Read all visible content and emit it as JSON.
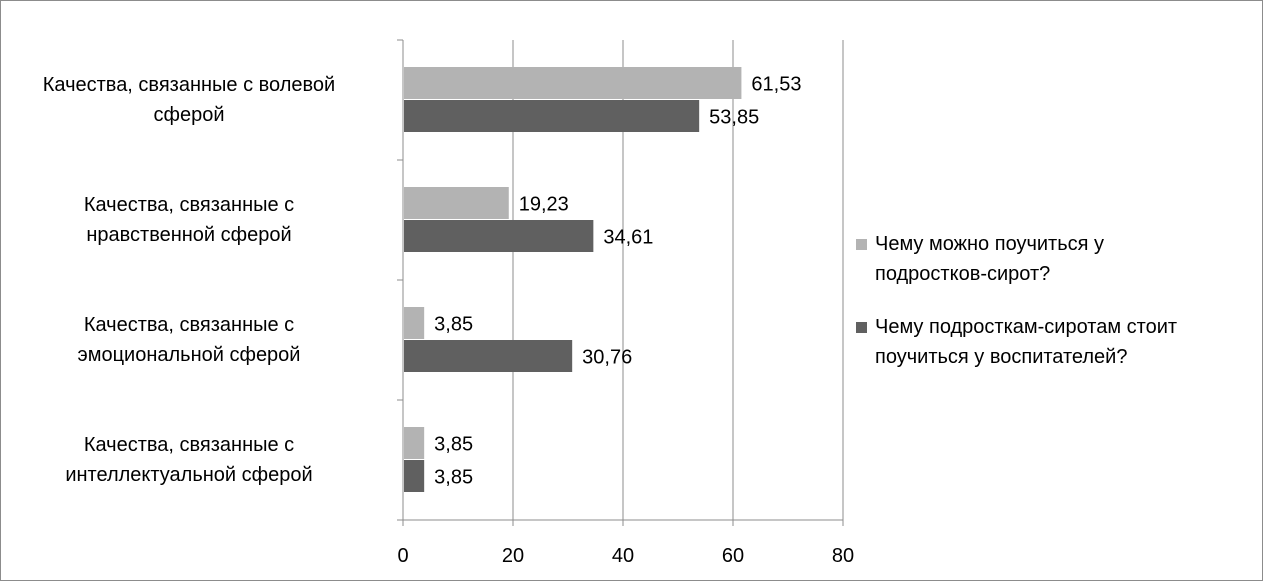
{
  "chart_data": {
    "type": "bar",
    "orientation": "horizontal",
    "categories": [
      "Качества, связанные с волевой сферой",
      "Качества, связанные с нравственной сферой",
      "Качества, связанные с эмоциональной сферой",
      "Качества, связанные с интеллектуальной сферой"
    ],
    "category_lines": [
      [
        "Качества, связанные с волевой",
        "сферой"
      ],
      [
        "Качества, связанные с",
        "нравственной сферой"
      ],
      [
        "Качества, связанные с",
        "эмоциональной сферой"
      ],
      [
        "Качества, связанные с",
        "интеллектуальной сферой"
      ]
    ],
    "series": [
      {
        "name": "Чему можно поучиться у подростков-сирот?",
        "name_lines": [
          "Чему можно поучиться у",
          "подростков-сирот?"
        ],
        "color": "#b3b3b3",
        "values": [
          61.53,
          19.23,
          3.85,
          3.85
        ],
        "labels": [
          "61,53",
          "19,23",
          "3,85",
          "3,85"
        ]
      },
      {
        "name": "Чему подросткам-сиротам стоит поучиться у воспитателей?",
        "name_lines": [
          "Чему подросткам-сиротам стоит",
          "поучиться у воспитателей?"
        ],
        "color": "#606060",
        "values": [
          53.85,
          34.61,
          30.76,
          3.85
        ],
        "labels": [
          "53,85",
          "34,61",
          "30,76",
          "3,85"
        ]
      }
    ],
    "xlim": [
      0,
      80
    ],
    "x_ticks": [
      "0",
      "20",
      "40",
      "60",
      "80"
    ],
    "grid": true,
    "legend": "right",
    "title": "",
    "xlabel": "",
    "ylabel": ""
  }
}
